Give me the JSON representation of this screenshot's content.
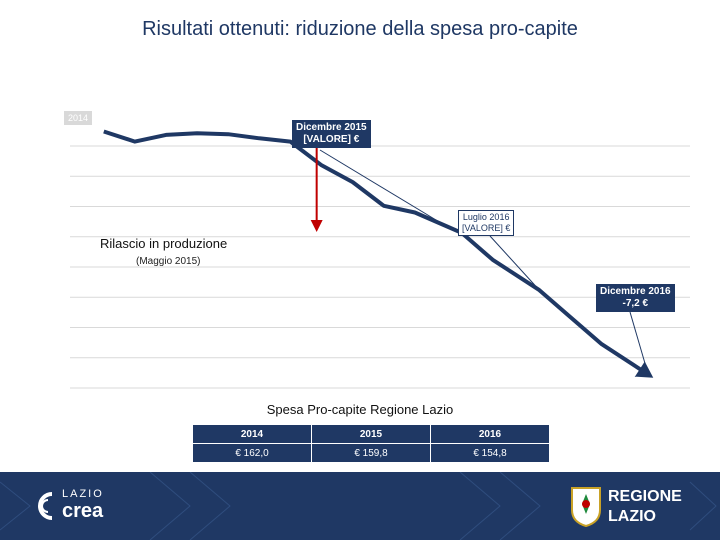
{
  "page": {
    "title": "Risultati ottenuti: riduzione della spesa pro-capite"
  },
  "chart_data": {
    "type": "line",
    "x": [
      "2014-01",
      "2014-03",
      "2014-05",
      "2014-07",
      "2014-09",
      "2014-11",
      "2015-01",
      "2015-03",
      "2015-05",
      "2015-07",
      "2015-09",
      "2015-11",
      "2015-12",
      "2016-02",
      "2016-05",
      "2016-07",
      "2016-09",
      "2016-12"
    ],
    "series": [
      {
        "values": [
          0.0,
          -0.3,
          -0.1,
          -0.05,
          -0.08,
          -0.2,
          -0.3,
          -1.0,
          -1.5,
          -2.2,
          -2.4,
          -2.8,
          -3.0,
          -3.8,
          -4.7,
          -5.5,
          -6.3,
          -7.2
        ]
      }
    ],
    "annotations": {
      "start_tag": "2014",
      "dec2015_line1": "Dicembre 2015",
      "dec2015_line2": "[VALORE] €",
      "jul2016_line1": "Luglio 2016",
      "jul2016_line2": "[VALORE] €",
      "dec2016_line1": "Dicembre 2016",
      "dec2016_line2": "-7,2 €",
      "milestone": "Rilascio in produzione",
      "milestone_date": "(Maggio 2015)"
    },
    "ylim": [
      -7.6,
      0.4
    ],
    "grid": true,
    "colors": {
      "line": "#1f3864",
      "arrow": "#c00000",
      "grid": "#d9d9d9"
    }
  },
  "table": {
    "title": "Spesa Pro-capite Regione Lazio",
    "headers": [
      "2014",
      "2015",
      "2016"
    ],
    "values": [
      "€ 162,0",
      "€ 159,8",
      "€ 154,8"
    ]
  },
  "footer": {
    "left_logo_small": "LAZIO",
    "left_logo_big": "crea",
    "right_logo_line1": "REGIONE",
    "right_logo_line2": "LAZIO",
    "background": "#1f3864"
  }
}
